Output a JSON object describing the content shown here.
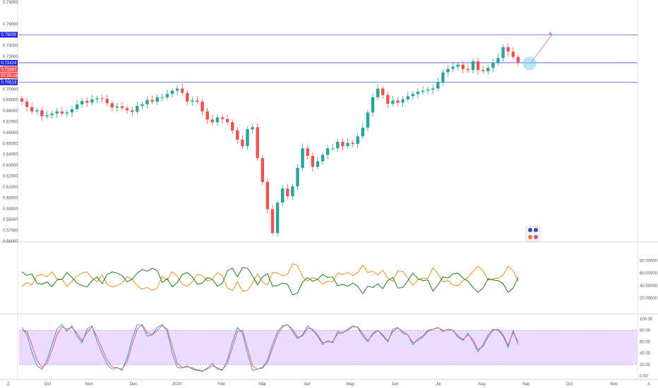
{
  "chart_data": [
    {
      "type": "candlestick",
      "panel": "price",
      "title": "",
      "ylim": [
        0.56,
        0.78
      ],
      "y_ticks": [
        "0.78000",
        "0.76000",
        "0.74000",
        "0.73000",
        "0.72000",
        "0.71000",
        "0.70000",
        "0.69000",
        "0.68000",
        "0.67000",
        "0.66000",
        "0.65000",
        "0.64000",
        "0.63000",
        "0.62000",
        "0.61000",
        "0.60000",
        "0.59000",
        "0.58000",
        "0.57000",
        "0.56000"
      ],
      "y_tick_values": [
        0.78,
        0.76,
        0.74,
        0.73,
        0.72,
        0.71,
        0.7,
        0.69,
        0.68,
        0.67,
        0.66,
        0.65,
        0.64,
        0.63,
        0.62,
        0.61,
        0.6,
        0.59,
        0.58,
        0.57,
        0.56
      ],
      "x_ticks": [
        "Oct",
        "Nov",
        "Dec",
        "2020",
        "Feb",
        "Mar",
        "Apr",
        "May",
        "Jun",
        "Jul",
        "Aug",
        "Sep",
        "Oct",
        "Nov"
      ],
      "x_tick_positions": [
        2.5,
        6.5,
        10.8,
        15.0,
        19.3,
        23.3,
        27.6,
        31.8,
        36.1,
        40.3,
        44.5,
        48.8,
        53.0,
        57.3
      ],
      "up_color": "#26a69a",
      "down_color": "#ef5350",
      "horizontal_levels": [
        {
          "label": "0.75000",
          "value": 0.75,
          "color": "#1e22e6"
        },
        {
          "label": "0.72424",
          "value": 0.72424,
          "color": "#1e22e6"
        },
        {
          "label": "0.70619",
          "value": 0.70619,
          "color": "#1e22e6"
        }
      ],
      "price_tags": [
        {
          "label": "0.72424",
          "value": 0.72424,
          "color": "#1e22e6"
        },
        {
          "label": "0.72397",
          "value": 0.7181,
          "color": "#ef5350"
        },
        {
          "label": "07:05:19",
          "value": 0.7125,
          "color": "#ef5350"
        }
      ],
      "projection_arrow": {
        "from": [
          49.1,
          0.7242
        ],
        "to": [
          51.3,
          0.7502
        ],
        "color": "#c77ad6"
      },
      "highlight_circle": {
        "x": 49.3,
        "y": 0.7237,
        "color": "#7fd3ea"
      },
      "close": [
        0.6885,
        0.6835,
        0.6795,
        0.6805,
        0.675,
        0.676,
        0.6775,
        0.6795,
        0.6775,
        0.6785,
        0.6815,
        0.686,
        0.689,
        0.6875,
        0.6905,
        0.6915,
        0.691,
        0.687,
        0.683,
        0.684,
        0.6825,
        0.6805,
        0.679,
        0.6845,
        0.686,
        0.69,
        0.6885,
        0.6925,
        0.6925,
        0.6955,
        0.6985,
        0.7005,
        0.6965,
        0.6885,
        0.6895,
        0.6885,
        0.6795,
        0.672,
        0.6695,
        0.674,
        0.6725,
        0.6695,
        0.662,
        0.6535,
        0.6475,
        0.663,
        0.665,
        0.6365,
        0.6145,
        0.5895,
        0.5675,
        0.5955,
        0.6085,
        0.6015,
        0.6105,
        0.6275,
        0.6455,
        0.6385,
        0.6285,
        0.6335,
        0.6395,
        0.6455,
        0.6455,
        0.6515,
        0.6475,
        0.6505,
        0.6495,
        0.6565,
        0.6645,
        0.6785,
        0.6925,
        0.7005,
        0.6945,
        0.6865,
        0.6895,
        0.6875,
        0.6905,
        0.6935,
        0.6955,
        0.6975,
        0.6985,
        0.6995,
        0.7005,
        0.7065,
        0.7155,
        0.7185,
        0.7205,
        0.7225,
        0.7185,
        0.7175,
        0.7255,
        0.7175,
        0.7165,
        0.7195,
        0.7245,
        0.7285,
        0.7385,
        0.7345,
        0.7295,
        0.7248
      ],
      "raw_candle_count": 100
    },
    {
      "type": "line",
      "panel": "oscillator",
      "title": "",
      "ylim": [
        0,
        100
      ],
      "y_ticks": [
        "80.00000",
        "60.00000",
        "40.00000",
        "20.00000"
      ],
      "y_tick_values": [
        80,
        60,
        40,
        20
      ],
      "series": [
        {
          "name": "",
          "color": "#ef8c1d",
          "values": [
            38,
            45,
            41,
            56,
            58,
            54,
            62,
            51,
            50,
            39,
            47,
            56,
            60,
            62,
            52,
            46,
            57,
            42,
            38,
            40,
            44,
            54,
            50,
            40,
            34,
            37,
            32,
            36,
            55,
            49,
            62,
            55,
            42,
            39,
            46,
            58,
            56,
            47,
            50,
            61,
            56,
            36,
            32,
            46,
            31,
            32,
            44,
            59,
            46,
            41,
            61,
            60,
            56,
            58,
            75,
            72,
            54,
            47,
            53,
            50,
            42,
            47,
            46,
            60,
            58,
            61,
            56,
            61,
            73,
            61,
            63,
            57,
            65,
            52,
            47,
            64,
            63,
            52,
            40,
            49,
            52,
            51,
            69,
            59,
            46,
            48,
            41,
            40,
            48,
            53,
            63,
            71,
            64,
            49,
            51,
            52,
            57,
            71,
            64,
            47
          ]
        },
        {
          "name": "",
          "color": "#1e7a1e",
          "values": [
            62,
            56,
            59,
            44,
            42,
            46,
            38,
            49,
            50,
            61,
            53,
            44,
            40,
            38,
            48,
            54,
            43,
            58,
            62,
            60,
            56,
            46,
            50,
            60,
            66,
            63,
            68,
            64,
            45,
            51,
            38,
            45,
            58,
            61,
            54,
            42,
            44,
            53,
            50,
            39,
            44,
            64,
            68,
            54,
            69,
            68,
            56,
            41,
            54,
            59,
            39,
            40,
            44,
            42,
            25,
            28,
            46,
            53,
            47,
            50,
            58,
            53,
            54,
            40,
            42,
            39,
            44,
            39,
            27,
            39,
            37,
            43,
            35,
            48,
            53,
            36,
            37,
            48,
            60,
            51,
            48,
            49,
            31,
            41,
            54,
            52,
            59,
            60,
            52,
            47,
            37,
            29,
            36,
            51,
            49,
            48,
            43,
            29,
            36,
            53
          ]
        }
      ]
    },
    {
      "type": "line",
      "panel": "stochastic",
      "title": "",
      "ylim": [
        0,
        100
      ],
      "y_ticks": [
        "100.00",
        "80.00",
        "60.00",
        "40.00",
        "20.00",
        "0.00"
      ],
      "y_tick_values": [
        100,
        80,
        60,
        40,
        20,
        0
      ],
      "band": {
        "lower": 20,
        "upper": 80,
        "color": "#e6ccff"
      },
      "series": [
        {
          "name": "",
          "color": "#2196f3",
          "values": [
            85,
            72,
            42,
            18,
            12,
            28,
            55,
            82,
            90,
            78,
            88,
            70,
            58,
            82,
            88,
            60,
            40,
            20,
            12,
            15,
            10,
            32,
            65,
            90,
            88,
            70,
            72,
            85,
            90,
            78,
            40,
            15,
            14,
            18,
            12,
            10,
            8,
            14,
            22,
            12,
            10,
            28,
            60,
            85,
            75,
            40,
            10,
            12,
            15,
            28,
            55,
            78,
            88,
            90,
            78,
            65,
            72,
            88,
            80,
            70,
            55,
            62,
            58,
            78,
            75,
            82,
            88,
            85,
            70,
            60,
            75,
            80,
            70,
            60,
            82,
            85,
            75,
            72,
            55,
            65,
            70,
            80,
            82,
            85,
            78,
            82,
            80,
            68,
            62,
            75,
            60,
            42,
            55,
            72,
            82,
            80,
            70,
            50,
            80,
            55
          ]
        },
        {
          "name": "",
          "color": "#ef5350",
          "values": [
            80,
            78,
            55,
            28,
            15,
            22,
            45,
            72,
            86,
            82,
            85,
            75,
            62,
            76,
            86,
            68,
            48,
            28,
            16,
            14,
            12,
            25,
            55,
            82,
            90,
            76,
            72,
            80,
            88,
            82,
            52,
            22,
            15,
            16,
            14,
            11,
            9,
            12,
            18,
            14,
            11,
            22,
            50,
            78,
            80,
            50,
            18,
            12,
            14,
            24,
            48,
            72,
            86,
            90,
            82,
            68,
            70,
            84,
            82,
            72,
            58,
            60,
            60,
            74,
            76,
            80,
            86,
            86,
            74,
            62,
            72,
            80,
            72,
            62,
            78,
            84,
            78,
            72,
            58,
            62,
            68,
            78,
            82,
            84,
            80,
            80,
            80,
            70,
            64,
            72,
            64,
            46,
            52,
            68,
            80,
            82,
            72,
            54,
            76,
            60
          ]
        }
      ]
    }
  ],
  "axis_labels": {
    "bottom_left": "Z",
    "bottom_right": "A"
  }
}
